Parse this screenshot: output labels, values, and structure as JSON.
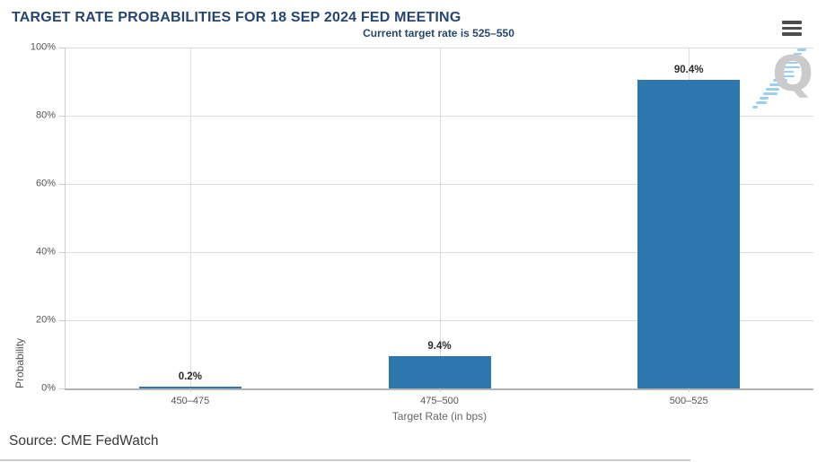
{
  "chart_data": {
    "type": "bar",
    "title": "TARGET RATE PROBABILITIES FOR 18 SEP 2024 FED MEETING",
    "subtitle": "Current target rate is 525–550",
    "categories": [
      "450–475",
      "475–500",
      "500–525"
    ],
    "values": [
      0.2,
      9.4,
      90.4
    ],
    "value_labels": [
      "0.2%",
      "9.4%",
      "90.4%"
    ],
    "xlabel": "Target Rate (in bps)",
    "ylabel": "Probability",
    "ylim": [
      0,
      100
    ],
    "yticks": [
      0,
      20,
      40,
      60,
      80,
      100
    ],
    "ytick_suffix": "%",
    "grid": true,
    "legend": "none",
    "bar_color": "#2d76ae"
  },
  "menu": {
    "context_button_icon": "hamburger-icon"
  },
  "watermark": {
    "letter": "Q"
  },
  "footer": {
    "source": "Source: CME FedWatch"
  },
  "colors": {
    "title": "#27466f",
    "bar": "#2d76ae",
    "grid": "#dcdcdc",
    "axis_line": "#c9c9c9",
    "tick_label": "#555555",
    "axis_title": "#666666",
    "value_label": "#2a2a2a",
    "source": "#383838"
  }
}
